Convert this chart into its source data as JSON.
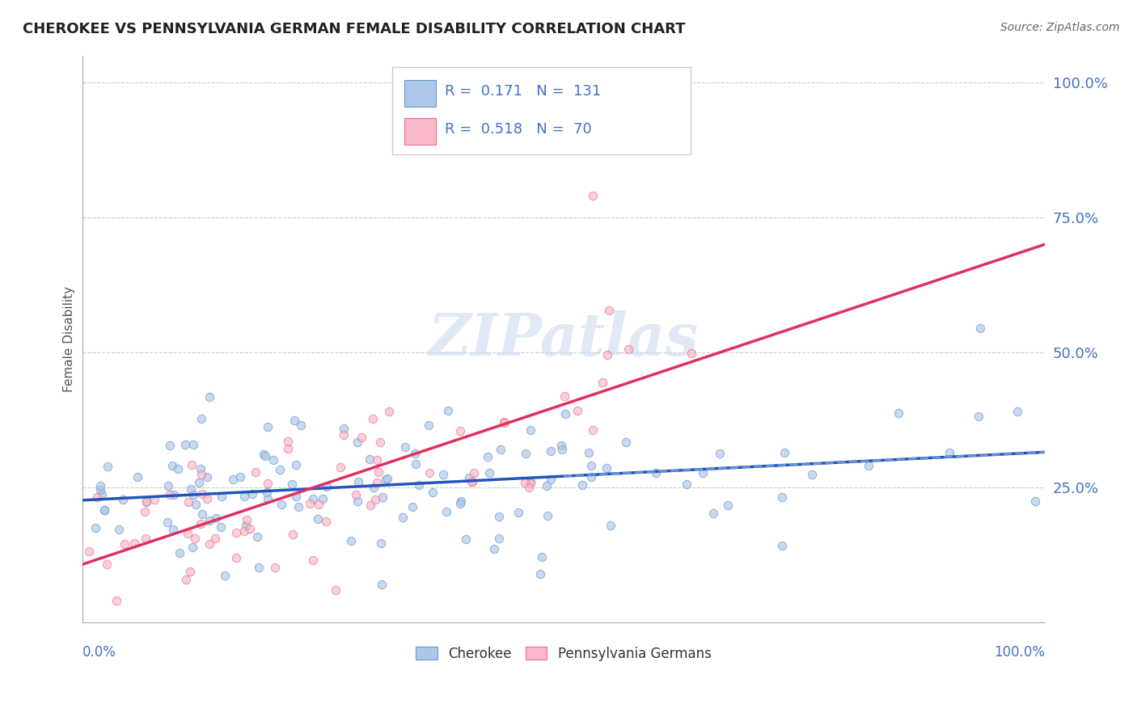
{
  "title": "CHEROKEE VS PENNSYLVANIA GERMAN FEMALE DISABILITY CORRELATION CHART",
  "source_text": "Source: ZipAtlas.com",
  "ylabel": "Female Disability",
  "r_cherokee": 0.171,
  "n_cherokee": 131,
  "r_pa_german": 0.518,
  "n_pa_german": 70,
  "color_cherokee_fill": "#aec6e8",
  "color_cherokee_edge": "#6699cc",
  "color_pa_fill": "#f9b8c8",
  "color_pa_edge": "#e87090",
  "line_color_cherokee": "#2255bb",
  "line_color_pa": "#e03060",
  "line_color_cherokee_dash": "#88aadd",
  "bg_color": "#ffffff",
  "grid_color": "#cccccc",
  "text_color_blue": "#4472c4",
  "scatter_alpha": 0.65,
  "scatter_size": 55,
  "xlim": [
    0.0,
    1.0
  ],
  "ylim": [
    0.0,
    1.05
  ],
  "watermark": "ZIPatlas"
}
